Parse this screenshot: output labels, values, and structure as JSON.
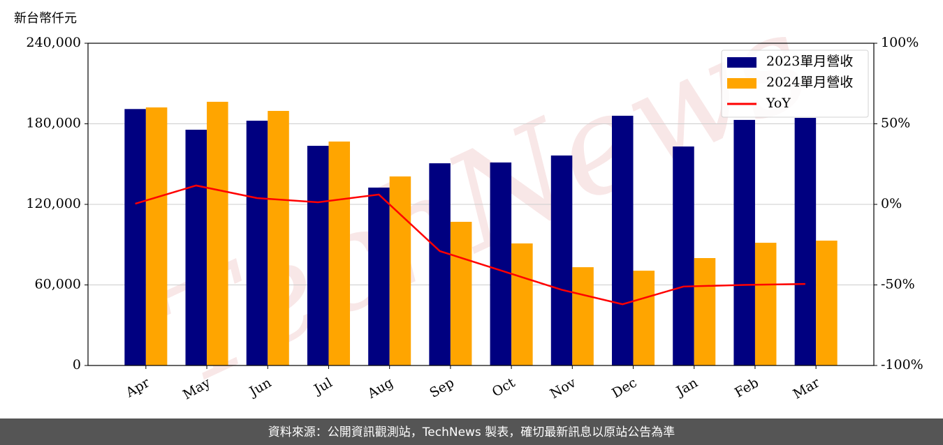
{
  "chart_data": {
    "type": "bar_line",
    "y_label": "新台幣仟元",
    "watermark": "TechNews",
    "footer": "資料來源：公開資訊觀測站，TechNews 製表，確切最新訊息以原站公告為準",
    "categories": [
      "Apr",
      "May",
      "Jun",
      "Jul",
      "Aug",
      "Sep",
      "Oct",
      "Nov",
      "Dec",
      "Jan",
      "Feb",
      "Mar"
    ],
    "series": [
      {
        "name": "2023單月營收",
        "type": "bar",
        "color": "#000080",
        "values": [
          191000,
          175600,
          182300,
          163600,
          132500,
          150600,
          151200,
          156400,
          186000,
          163100,
          182900,
          184400
        ]
      },
      {
        "name": "2024單月營收",
        "type": "bar",
        "color": "#ffa500",
        "values": [
          192200,
          196400,
          189600,
          166800,
          140800,
          107000,
          90900,
          73200,
          70600,
          80000,
          91400,
          93000
        ]
      },
      {
        "name": "YoY",
        "type": "line",
        "axis": "y2",
        "color": "#ff0000",
        "values": [
          0.4,
          11.7,
          3.9,
          1.3,
          6.1,
          -29,
          -41,
          -53,
          -62,
          -51,
          -50,
          -49.4
        ]
      }
    ],
    "ylim": [
      0,
      240000
    ],
    "yticks": [
      0,
      {
        "value": 60000,
        "label": "60,000"
      },
      {
        "value": 120000,
        "label": "120,000"
      },
      {
        "value": 180000,
        "label": "180,000"
      },
      {
        "value": 240000,
        "label": "240,000"
      }
    ],
    "y2lim": [
      -100,
      100
    ],
    "y2ticks": [
      {
        "value": -100,
        "label": "-100%"
      },
      {
        "value": -50,
        "label": "-50%"
      },
      {
        "value": 0,
        "label": "0%"
      },
      {
        "value": 50,
        "label": "50%"
      },
      {
        "value": 100,
        "label": "100%"
      }
    ],
    "grid": true,
    "legend": "upper right"
  }
}
